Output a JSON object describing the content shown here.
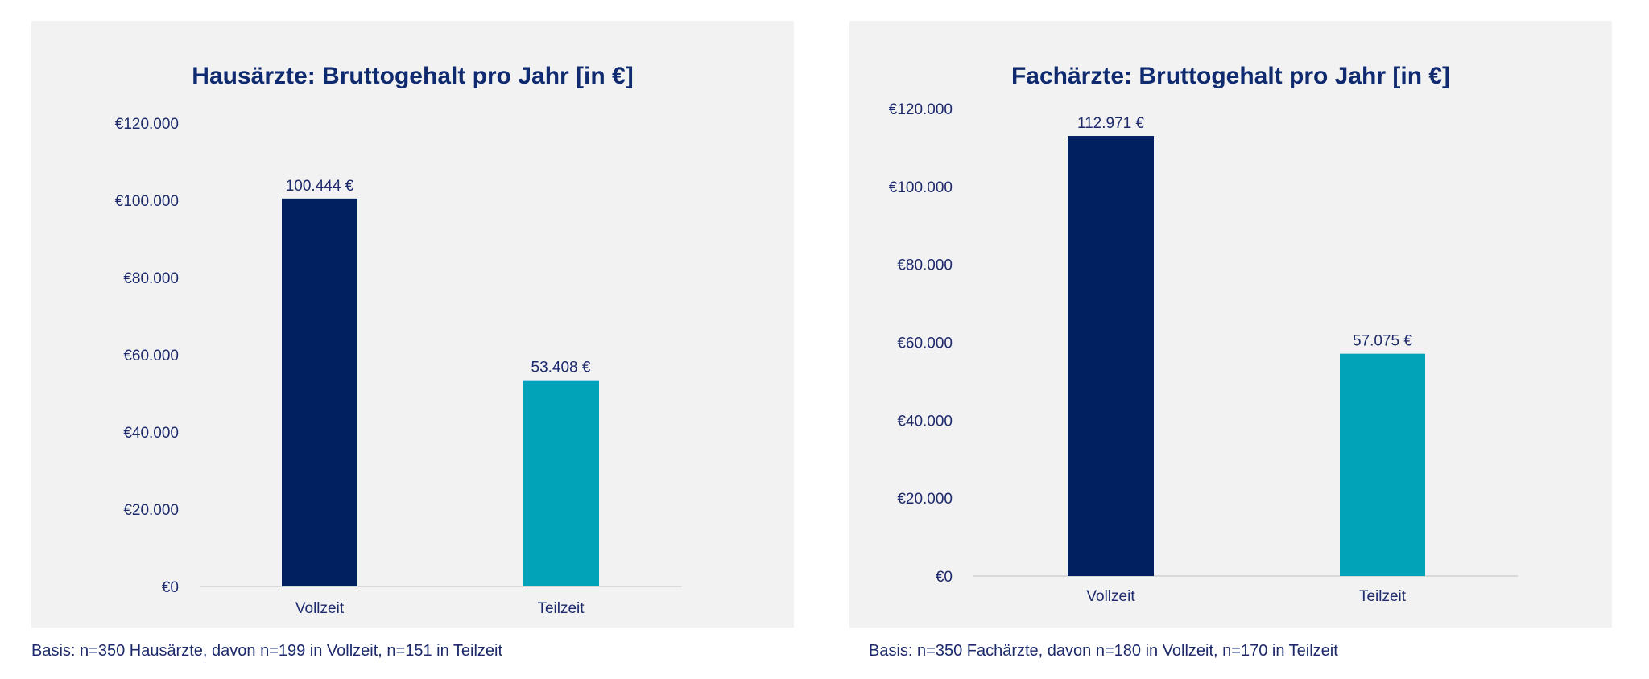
{
  "colors": {
    "vollzeit": "#002060",
    "teilzeit": "#00a3b8",
    "text": "#1d2a6b",
    "panel": "#f2f2f2",
    "axis": "#d9d9d9"
  },
  "chart_data": [
    {
      "type": "bar",
      "title": "Hausärzte: Bruttogehalt pro Jahr [in €]",
      "categories": [
        "Vollzeit",
        "Teilzeit"
      ],
      "values": [
        100444,
        53408
      ],
      "data_labels": [
        "100.444 €",
        "53.408 €"
      ],
      "yticks": [
        0,
        20000,
        40000,
        60000,
        80000,
        100000,
        120000
      ],
      "ytick_labels": [
        "€0",
        "€20.000",
        "€40.000",
        "€60.000",
        "€80.000",
        "€100.000",
        "€120.000"
      ],
      "ylim": [
        0,
        120000
      ],
      "grid": false,
      "footer": "Basis: n=350 Hausärzte, davon n=199 in Vollzeit, n=151 in Teilzeit"
    },
    {
      "type": "bar",
      "title": "Fachärzte: Bruttogehalt pro Jahr [in €]",
      "categories": [
        "Vollzeit",
        "Teilzeit"
      ],
      "values": [
        112971,
        57075
      ],
      "data_labels": [
        "112.971 €",
        "57.075 €"
      ],
      "yticks": [
        0,
        20000,
        40000,
        60000,
        80000,
        100000,
        120000
      ],
      "ytick_labels": [
        "€0",
        "€20.000",
        "€40.000",
        "€60.000",
        "€80.000",
        "€100.000",
        "€120.000"
      ],
      "ylim": [
        0,
        120000
      ],
      "grid": false,
      "footer": "Basis: n=350 Fachärzte, davon n=180 in Vollzeit, n=170 in Teilzeit"
    }
  ]
}
